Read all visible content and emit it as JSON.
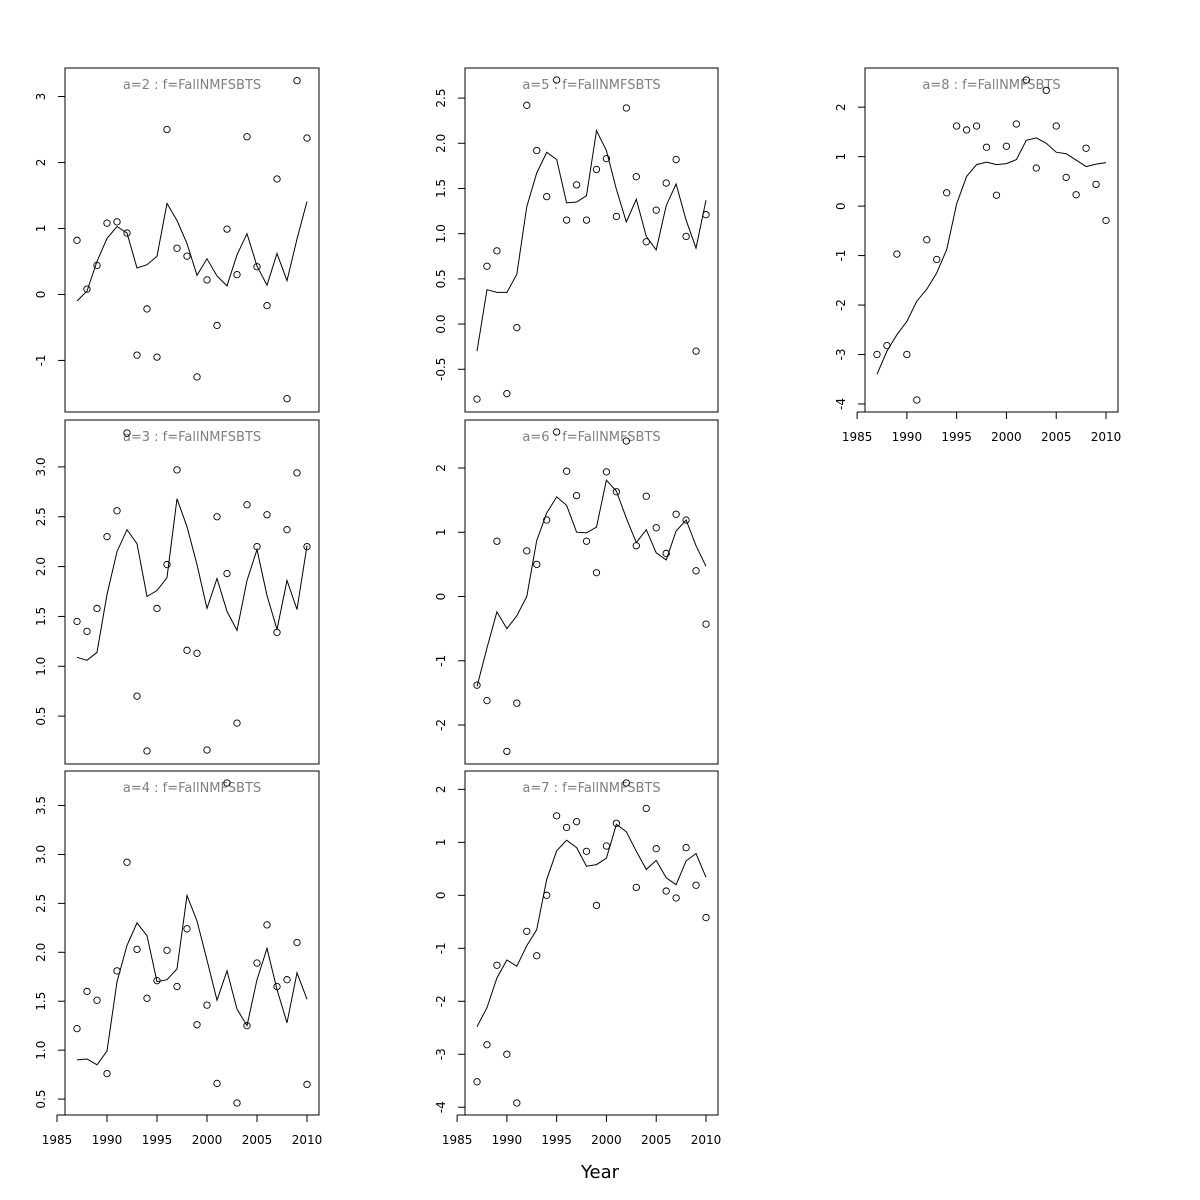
{
  "figure": {
    "xlabel": "Year"
  },
  "chart_data": [
    {
      "type": "scatter",
      "title": "a=2 : f=FallNMFSBTS",
      "x_range": [
        1987,
        2010
      ],
      "y_range": [
        -1.6,
        3.25
      ],
      "yticks": [
        "-1",
        "0",
        "1",
        "2",
        "3"
      ],
      "show_xaxis": false,
      "years": [
        1987,
        1988,
        1989,
        1990,
        1991,
        1992,
        1993,
        1994,
        1995,
        1996,
        1997,
        1998,
        1999,
        2000,
        2001,
        2002,
        2003,
        2004,
        2005,
        2006,
        2007,
        2008,
        2009,
        2010
      ],
      "series": [
        {
          "name": "observed",
          "kind": "points",
          "values": [
            0.82,
            0.08,
            0.44,
            1.08,
            1.1,
            0.93,
            -0.92,
            -0.22,
            -0.95,
            2.5,
            0.7,
            0.58,
            -1.25,
            0.22,
            -0.47,
            0.99,
            0.3,
            2.39,
            0.42,
            -0.17,
            1.75,
            -1.58,
            3.24,
            2.37
          ]
        },
        {
          "name": "fitted",
          "kind": "line",
          "values": [
            -0.1,
            0.05,
            0.5,
            0.85,
            1.03,
            0.93,
            0.4,
            0.45,
            0.58,
            1.38,
            1.12,
            0.77,
            0.29,
            0.54,
            0.28,
            0.13,
            0.6,
            0.92,
            0.43,
            0.14,
            0.62,
            0.21,
            0.84,
            1.41
          ]
        }
      ]
    },
    {
      "type": "scatter",
      "title": "a=3 : f=FallNMFSBTS",
      "x_range": [
        1987,
        2010
      ],
      "y_range": [
        0.14,
        3.35
      ],
      "yticks": [
        "0.5",
        "1.0",
        "1.5",
        "2.0",
        "2.5",
        "3.0"
      ],
      "show_xaxis": false,
      "years": [
        1987,
        1988,
        1989,
        1990,
        1991,
        1992,
        1993,
        1994,
        1995,
        1996,
        1997,
        1998,
        1999,
        2000,
        2001,
        2002,
        2003,
        2004,
        2005,
        2006,
        2007,
        2008,
        2009,
        2010
      ],
      "series": [
        {
          "name": "observed",
          "kind": "points",
          "values": [
            1.45,
            1.35,
            1.58,
            2.3,
            2.56,
            3.34,
            0.7,
            0.15,
            1.58,
            2.02,
            2.97,
            1.16,
            1.13,
            0.16,
            2.5,
            1.93,
            0.43,
            2.62,
            2.2,
            2.52,
            1.34,
            2.37,
            2.94,
            2.2
          ]
        },
        {
          "name": "fitted",
          "kind": "line",
          "values": [
            1.09,
            1.06,
            1.14,
            1.72,
            2.15,
            2.37,
            2.23,
            1.7,
            1.76,
            1.89,
            2.68,
            2.4,
            2.02,
            1.58,
            1.88,
            1.55,
            1.36,
            1.86,
            2.17,
            1.71,
            1.37,
            1.86,
            1.57,
            2.21
          ]
        }
      ]
    },
    {
      "type": "scatter",
      "title": "a=4 : f=FallNMFSBTS",
      "x_range": [
        1987,
        2010
      ],
      "y_range": [
        0.46,
        3.73
      ],
      "yticks": [
        "0.5",
        "1.0",
        "1.5",
        "2.0",
        "2.5",
        "3.0",
        "3.5"
      ],
      "show_xaxis": true,
      "xticks": [
        "1985",
        "1990",
        "1995",
        "2000",
        "2005",
        "2010"
      ],
      "years": [
        1987,
        1988,
        1989,
        1990,
        1991,
        1992,
        1993,
        1994,
        1995,
        1996,
        1997,
        1998,
        1999,
        2000,
        2001,
        2002,
        2003,
        2004,
        2005,
        2006,
        2007,
        2008,
        2009,
        2010
      ],
      "series": [
        {
          "name": "observed",
          "kind": "points",
          "values": [
            1.22,
            1.6,
            1.51,
            0.76,
            1.81,
            2.92,
            2.03,
            1.53,
            1.71,
            2.02,
            1.65,
            2.24,
            1.26,
            1.46,
            0.66,
            3.73,
            0.46,
            1.25,
            1.89,
            2.28,
            1.65,
            1.72,
            2.1,
            0.65
          ]
        },
        {
          "name": "fitted",
          "kind": "line",
          "values": [
            0.9,
            0.91,
            0.85,
            0.99,
            1.7,
            2.07,
            2.3,
            2.17,
            1.7,
            1.72,
            1.83,
            2.58,
            2.32,
            1.92,
            1.51,
            1.81,
            1.42,
            1.25,
            1.72,
            2.04,
            1.62,
            1.28,
            1.79,
            1.52
          ]
        }
      ]
    },
    {
      "type": "scatter",
      "title": "a=5 : f=FallNMFSBTS",
      "x_range": [
        1987,
        2010
      ],
      "y_range": [
        -0.84,
        2.7
      ],
      "yticks": [
        "-0.5",
        "0.0",
        "0.5",
        "1.0",
        "1.5",
        "2.0",
        "2.5"
      ],
      "show_xaxis": false,
      "years": [
        1987,
        1988,
        1989,
        1990,
        1991,
        1992,
        1993,
        1994,
        1995,
        1996,
        1997,
        1998,
        1999,
        2000,
        2001,
        2002,
        2003,
        2004,
        2005,
        2006,
        2007,
        2008,
        2009,
        2010
      ],
      "series": [
        {
          "name": "observed",
          "kind": "points",
          "values": [
            -0.83,
            0.64,
            0.81,
            -0.77,
            -0.04,
            2.42,
            1.92,
            1.41,
            2.7,
            1.15,
            1.54,
            1.15,
            1.71,
            1.83,
            1.19,
            2.39,
            1.63,
            0.91,
            1.26,
            1.56,
            1.82,
            0.97,
            -0.3,
            1.21
          ]
        },
        {
          "name": "fitted",
          "kind": "line",
          "values": [
            -0.3,
            0.38,
            0.35,
            0.35,
            0.55,
            1.3,
            1.67,
            1.9,
            1.82,
            1.34,
            1.35,
            1.42,
            2.14,
            1.92,
            1.49,
            1.13,
            1.38,
            0.97,
            0.82,
            1.31,
            1.55,
            1.15,
            0.84,
            1.37
          ]
        }
      ]
    },
    {
      "type": "scatter",
      "title": "a=6 : f=FallNMFSBTS",
      "x_range": [
        1987,
        2010
      ],
      "y_range": [
        -2.42,
        2.56
      ],
      "yticks": [
        "-2",
        "-1",
        "0",
        "1",
        "2"
      ],
      "show_xaxis": false,
      "years": [
        1987,
        1988,
        1989,
        1990,
        1991,
        1992,
        1993,
        1994,
        1995,
        1996,
        1997,
        1998,
        1999,
        2000,
        2001,
        2002,
        2003,
        2004,
        2005,
        2006,
        2007,
        2008,
        2009,
        2010
      ],
      "series": [
        {
          "name": "observed",
          "kind": "points",
          "values": [
            -1.38,
            -1.62,
            0.86,
            -2.41,
            -1.66,
            0.71,
            0.5,
            1.19,
            2.56,
            1.95,
            1.57,
            0.86,
            0.37,
            1.94,
            1.63,
            2.42,
            0.79,
            1.56,
            1.07,
            0.67,
            1.28,
            1.19,
            0.4,
            -0.43
          ]
        },
        {
          "name": "fitted",
          "kind": "line",
          "values": [
            -1.4,
            -0.8,
            -0.24,
            -0.5,
            -0.3,
            0.0,
            0.87,
            1.3,
            1.55,
            1.42,
            1.0,
            0.99,
            1.08,
            1.81,
            1.64,
            1.22,
            0.84,
            1.04,
            0.68,
            0.57,
            1.02,
            1.19,
            0.79,
            0.47
          ]
        }
      ]
    },
    {
      "type": "scatter",
      "title": "a=7 : f=FallNMFSBTS",
      "x_range": [
        1987,
        2010
      ],
      "y_range": [
        -3.92,
        2.12
      ],
      "yticks": [
        "-4",
        "-3",
        "-2",
        "-1",
        "0",
        "1",
        "2"
      ],
      "show_xaxis": true,
      "xticks": [
        "1985",
        "1990",
        "1995",
        "2000",
        "2005",
        "2010"
      ],
      "years": [
        1987,
        1988,
        1989,
        1990,
        1991,
        1992,
        1993,
        1994,
        1995,
        1996,
        1997,
        1998,
        1999,
        2000,
        2001,
        2002,
        2003,
        2004,
        2005,
        2006,
        2007,
        2008,
        2009,
        2010
      ],
      "series": [
        {
          "name": "observed",
          "kind": "points",
          "values": [
            -3.52,
            -2.82,
            -1.32,
            -3.0,
            -3.92,
            -0.68,
            -1.14,
            0.0,
            1.5,
            1.28,
            1.39,
            0.83,
            -0.19,
            0.93,
            1.36,
            2.12,
            0.15,
            1.64,
            0.88,
            0.08,
            -0.05,
            0.9,
            0.19,
            -0.42
          ]
        },
        {
          "name": "fitted",
          "kind": "line",
          "values": [
            -2.48,
            -2.12,
            -1.56,
            -1.22,
            -1.34,
            -0.95,
            -0.65,
            0.3,
            0.84,
            1.04,
            0.9,
            0.55,
            0.58,
            0.7,
            1.34,
            1.2,
            0.83,
            0.49,
            0.66,
            0.33,
            0.2,
            0.65,
            0.79,
            0.34
          ]
        }
      ]
    },
    {
      "type": "scatter",
      "title": "a=8 : f=FallNMFSBTS",
      "x_range": [
        1987,
        2010
      ],
      "y_range": [
        -3.92,
        2.55
      ],
      "yticks": [
        "-4",
        "-3",
        "-2",
        "-1",
        "0",
        "1",
        "2"
      ],
      "show_xaxis": true,
      "xticks": [
        "1985",
        "1990",
        "1995",
        "2000",
        "2005",
        "2010"
      ],
      "years": [
        1987,
        1988,
        1989,
        1990,
        1991,
        1992,
        1993,
        1994,
        1995,
        1996,
        1997,
        1998,
        1999,
        2000,
        2001,
        2002,
        2003,
        2004,
        2005,
        2006,
        2007,
        2008,
        2009,
        2010
      ],
      "series": [
        {
          "name": "observed",
          "kind": "points",
          "values": [
            -3.0,
            -2.82,
            -0.97,
            -3.0,
            -3.92,
            -0.68,
            -1.08,
            0.27,
            1.62,
            1.54,
            1.62,
            1.19,
            0.22,
            1.21,
            1.66,
            2.55,
            0.77,
            2.34,
            1.62,
            0.58,
            0.23,
            1.17,
            0.44,
            -0.29
          ]
        },
        {
          "name": "fitted",
          "kind": "line",
          "values": [
            -3.4,
            -2.93,
            -2.6,
            -2.33,
            -1.92,
            -1.68,
            -1.35,
            -0.88,
            0.05,
            0.6,
            0.84,
            0.89,
            0.84,
            0.86,
            0.94,
            1.33,
            1.38,
            1.27,
            1.09,
            1.06,
            0.93,
            0.8,
            0.85,
            0.88
          ]
        }
      ]
    }
  ]
}
